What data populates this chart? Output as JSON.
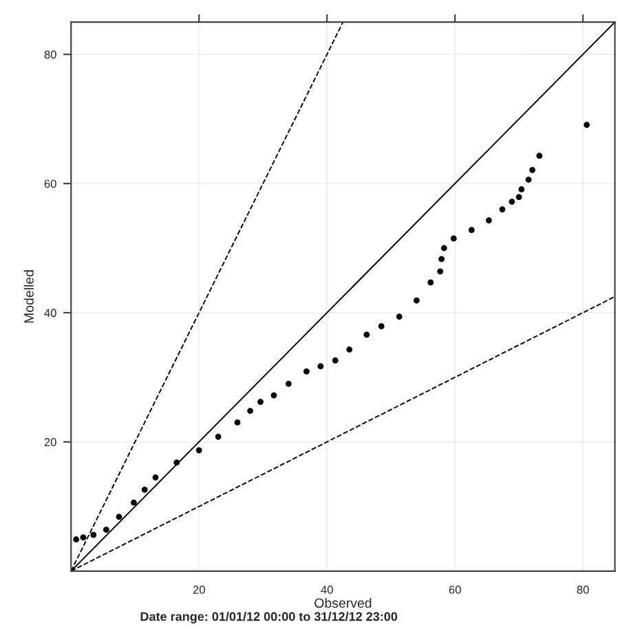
{
  "chart_data": {
    "type": "scatter",
    "xlabel": "Observed",
    "ylabel": "Modelled",
    "annotations": [
      "Date range: 01/01/12 00:00 to 31/12/12 23:00"
    ],
    "xlim": [
      0,
      85
    ],
    "ylim": [
      0,
      85
    ],
    "xticks": [
      20,
      40,
      60,
      80
    ],
    "yticks": [
      20,
      40,
      60,
      80
    ],
    "grid": true,
    "series": [
      {
        "marker": "circle",
        "color": "#000000",
        "x": [
          0.8,
          1.9,
          3.5,
          5.5,
          7.5,
          9.8,
          11.5,
          13.2,
          16.5,
          20,
          23,
          26,
          28,
          29.6,
          31.7,
          34,
          36.8,
          39,
          41.3,
          43.5,
          46.2,
          48.5,
          51.3,
          54,
          56.2,
          57.7,
          57.9,
          58.3,
          59.8,
          62.6,
          65.3,
          67.4,
          68.9,
          70,
          70.4,
          71.5,
          72.1,
          73.2,
          80.6
        ],
        "values": [
          4.9,
          5.2,
          5.6,
          6.4,
          8.4,
          10.6,
          12.6,
          14.5,
          16.8,
          18.7,
          20.8,
          23,
          24.8,
          26.2,
          27.2,
          29,
          30.9,
          31.7,
          32.6,
          34.3,
          36.6,
          37.9,
          39.4,
          41.9,
          44.7,
          46.4,
          48.3,
          50,
          51.5,
          52.8,
          54.3,
          56,
          57.2,
          57.9,
          59.1,
          60.6,
          62.1,
          64.3,
          69.1
        ]
      },
      {
        "type": "line",
        "color": "#000000",
        "line_style": "solid",
        "x": [
          0,
          85
        ],
        "values": [
          0,
          85
        ]
      },
      {
        "type": "line",
        "color": "#000000",
        "line_style": "dashed",
        "x": [
          0,
          42.5
        ],
        "values": [
          0,
          85
        ]
      },
      {
        "type": "line",
        "color": "#000000",
        "line_style": "dashed",
        "x": [
          0,
          85
        ],
        "values": [
          0,
          42.5
        ]
      }
    ]
  }
}
